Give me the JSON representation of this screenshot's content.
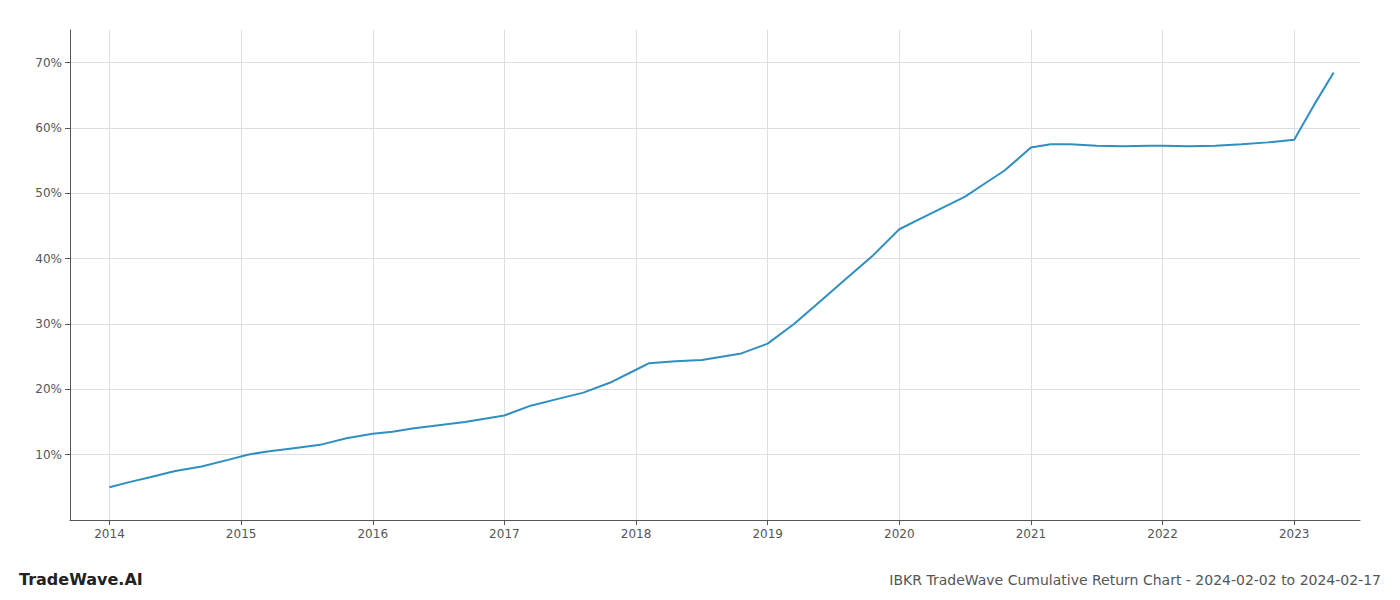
{
  "chart_data": {
    "type": "line",
    "title": "IBKR TradeWave Cumulative Return Chart - 2024-02-02 to 2024-02-17",
    "annotations": [
      "TradeWave.AI"
    ],
    "color": "#2f8fc0",
    "x": [
      2014.0,
      2014.15,
      2014.3,
      2014.5,
      2014.7,
      2014.9,
      2015.05,
      2015.2,
      2015.4,
      2015.6,
      2015.8,
      2016.0,
      2016.15,
      2016.3,
      2016.5,
      2016.7,
      2016.85,
      2017.0,
      2017.2,
      2017.4,
      2017.6,
      2017.8,
      2018.0,
      2018.1,
      2018.3,
      2018.5,
      2018.65,
      2018.8,
      2019.0,
      2019.2,
      2019.4,
      2019.6,
      2019.8,
      2020.0,
      2020.15,
      2020.3,
      2020.5,
      2020.65,
      2020.8,
      2021.0,
      2021.15,
      2021.3,
      2021.5,
      2021.7,
      2021.9,
      2022.0,
      2022.2,
      2022.4,
      2022.6,
      2022.8,
      2023.0,
      2023.15,
      2023.3
    ],
    "values": [
      5.0,
      5.8,
      6.5,
      7.5,
      8.2,
      9.2,
      10.0,
      10.5,
      11.0,
      11.5,
      12.5,
      13.2,
      13.5,
      14.0,
      14.5,
      15.0,
      15.5,
      16.0,
      17.5,
      18.5,
      19.5,
      21.0,
      23.0,
      24.0,
      24.3,
      24.5,
      25.0,
      25.5,
      27.0,
      30.0,
      33.5,
      37.0,
      40.5,
      44.5,
      46.0,
      47.5,
      49.5,
      51.5,
      53.5,
      57.0,
      57.5,
      57.5,
      57.3,
      57.2,
      57.3,
      57.3,
      57.2,
      57.3,
      57.5,
      57.8,
      58.2,
      63.5,
      68.5
    ],
    "xlim": [
      2013.7,
      2023.5
    ],
    "ylim": [
      0,
      75
    ],
    "xticks": [
      2014,
      2015,
      2016,
      2017,
      2018,
      2019,
      2020,
      2021,
      2022,
      2023
    ],
    "yticks": [
      {
        "value": 10,
        "label": "10%"
      },
      {
        "value": 20,
        "label": "20%"
      },
      {
        "value": 30,
        "label": "30%"
      },
      {
        "value": 40,
        "label": "40%"
      },
      {
        "value": 50,
        "label": "50%"
      },
      {
        "value": 60,
        "label": "60%"
      },
      {
        "value": 70,
        "label": "70%"
      }
    ],
    "grid": true
  }
}
